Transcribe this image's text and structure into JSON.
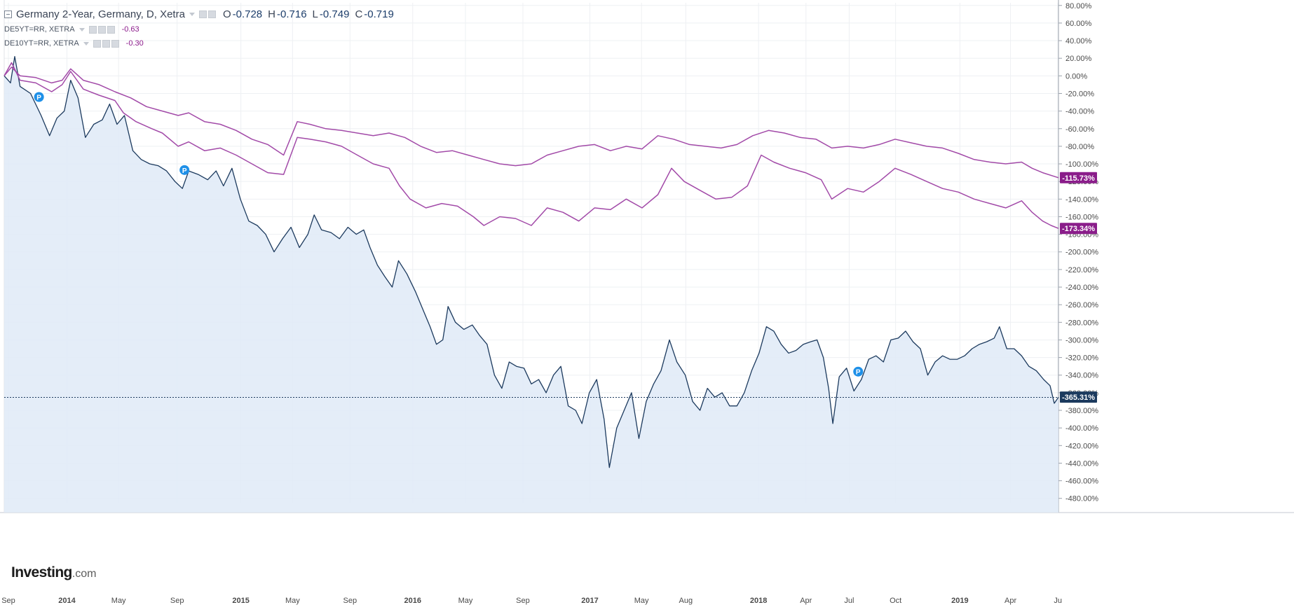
{
  "legend": {
    "main_title": "Germany 2-Year, Germany, D, Xetra",
    "open_label": "O",
    "open_value": "-0.728",
    "high_label": "H",
    "high_value": "-0.716",
    "low_label": "L",
    "low_value": "-0.749",
    "close_label": "C",
    "close_value": "-0.719",
    "series2_title": "DE5YT=RR, XETRA",
    "series2_value": "-0.63",
    "series3_title": "DE10YT=RR, XETRA",
    "series3_value": "-0.30"
  },
  "branding": {
    "logo_word": "Investing",
    "logo_suffix": ".com"
  },
  "colors": {
    "main_line": "#1c3a5e",
    "main_fill": "#dfeaf7",
    "compare_line": "#a24aa8",
    "main_badge": "#1c3a5e",
    "compare_badge": "#8a1d8a",
    "grid": "#eef0f3",
    "axis_text": "#4a4a4a",
    "marker": "#1e90e8"
  },
  "chart_data": {
    "type": "line",
    "title": "Germany 2-Year, Germany, D, Xetra",
    "x_ticks": [
      "Sep",
      "2014",
      "May",
      "Sep",
      "2015",
      "May",
      "Sep",
      "2016",
      "May",
      "Sep",
      "2017",
      "May",
      "Aug",
      "2018",
      "Apr",
      "Jul",
      "Oct",
      "2019",
      "Apr",
      "Ju"
    ],
    "y_ticks": [
      "80.00%",
      "60.00%",
      "40.00%",
      "20.00%",
      "0.00%",
      "-20.00%",
      "-40.00%",
      "-60.00%",
      "-80.00%",
      "-100.00%",
      "-120.00%",
      "-140.00%",
      "-160.00%",
      "-180.00%",
      "-200.00%",
      "-220.00%",
      "-240.00%",
      "-260.00%",
      "-280.00%",
      "-300.00%",
      "-320.00%",
      "-340.00%",
      "-360.00%",
      "-380.00%",
      "-400.00%",
      "-420.00%",
      "-440.00%",
      "-460.00%",
      "-480.00%"
    ],
    "y_unit": "% change",
    "ylim": [
      -485,
      83
    ],
    "grid": true,
    "x_domain": [
      0,
      100
    ],
    "series": [
      {
        "name": "Germany 2-Year, Germany, D, Xetra",
        "role": "main",
        "last_label": "-365.31%",
        "points": [
          [
            0,
            0
          ],
          [
            0.6,
            -8
          ],
          [
            1,
            22
          ],
          [
            1.5,
            -12
          ],
          [
            2.5,
            -20
          ],
          [
            3.5,
            -45
          ],
          [
            4.3,
            -68
          ],
          [
            5,
            -48
          ],
          [
            5.7,
            -40
          ],
          [
            6.3,
            -5
          ],
          [
            7,
            -25
          ],
          [
            7.7,
            -70
          ],
          [
            8.5,
            -55
          ],
          [
            9.3,
            -50
          ],
          [
            10,
            -32
          ],
          [
            10.7,
            -55
          ],
          [
            11.4,
            -45
          ],
          [
            12.2,
            -85
          ],
          [
            13,
            -95
          ],
          [
            13.8,
            -100
          ],
          [
            14.6,
            -102
          ],
          [
            15.4,
            -108
          ],
          [
            16.2,
            -120
          ],
          [
            16.9,
            -128
          ],
          [
            17.5,
            -108
          ],
          [
            18.4,
            -112
          ],
          [
            19.3,
            -118
          ],
          [
            20.1,
            -108
          ],
          [
            20.8,
            -125
          ],
          [
            21.6,
            -105
          ],
          [
            22.4,
            -140
          ],
          [
            23.2,
            -165
          ],
          [
            24,
            -170
          ],
          [
            24.8,
            -180
          ],
          [
            25.6,
            -200
          ],
          [
            26.4,
            -185
          ],
          [
            27.2,
            -172
          ],
          [
            28,
            -195
          ],
          [
            28.8,
            -180
          ],
          [
            29.4,
            -158
          ],
          [
            30.1,
            -175
          ],
          [
            31,
            -178
          ],
          [
            31.8,
            -185
          ],
          [
            32.6,
            -172
          ],
          [
            33.4,
            -180
          ],
          [
            34.1,
            -175
          ],
          [
            34.7,
            -195
          ],
          [
            35.4,
            -215
          ],
          [
            36.1,
            -228
          ],
          [
            36.8,
            -240
          ],
          [
            37.4,
            -210
          ],
          [
            38.2,
            -225
          ],
          [
            39,
            -245
          ],
          [
            39.7,
            -265
          ],
          [
            40.4,
            -285
          ],
          [
            41,
            -305
          ],
          [
            41.6,
            -300
          ],
          [
            42.1,
            -262
          ],
          [
            42.8,
            -280
          ],
          [
            43.6,
            -288
          ],
          [
            44.4,
            -283
          ],
          [
            45.1,
            -295
          ],
          [
            45.8,
            -305
          ],
          [
            46.5,
            -340
          ],
          [
            47.2,
            -355
          ],
          [
            47.9,
            -325
          ],
          [
            48.6,
            -330
          ],
          [
            49.3,
            -332
          ],
          [
            50,
            -350
          ],
          [
            50.7,
            -345
          ],
          [
            51.4,
            -360
          ],
          [
            52.1,
            -340
          ],
          [
            52.8,
            -330
          ],
          [
            53.5,
            -375
          ],
          [
            54.2,
            -380
          ],
          [
            54.8,
            -395
          ],
          [
            55.5,
            -360
          ],
          [
            56.2,
            -345
          ],
          [
            56.9,
            -390
          ],
          [
            57.4,
            -445
          ],
          [
            58.1,
            -400
          ],
          [
            58.8,
            -380
          ],
          [
            59.5,
            -360
          ],
          [
            60.2,
            -412
          ],
          [
            60.9,
            -370
          ],
          [
            61.6,
            -350
          ],
          [
            62.3,
            -335
          ],
          [
            63.1,
            -300
          ],
          [
            63.8,
            -325
          ],
          [
            64.6,
            -340
          ],
          [
            65.3,
            -370
          ],
          [
            66,
            -380
          ],
          [
            66.7,
            -355
          ],
          [
            67.4,
            -365
          ],
          [
            68.1,
            -360
          ],
          [
            68.8,
            -375
          ],
          [
            69.5,
            -375
          ],
          [
            70.2,
            -360
          ],
          [
            70.9,
            -335
          ],
          [
            71.6,
            -315
          ],
          [
            72.3,
            -285
          ],
          [
            73,
            -290
          ],
          [
            73.7,
            -305
          ],
          [
            74.4,
            -315
          ],
          [
            75.1,
            -312
          ],
          [
            75.8,
            -305
          ],
          [
            76.5,
            -302
          ],
          [
            77.1,
            -300
          ],
          [
            77.7,
            -320
          ],
          [
            78.2,
            -355
          ],
          [
            78.6,
            -395
          ],
          [
            79.2,
            -342
          ],
          [
            79.9,
            -332
          ],
          [
            80.6,
            -358
          ],
          [
            81.3,
            -345
          ],
          [
            82,
            -322
          ],
          [
            82.7,
            -318
          ],
          [
            83.4,
            -325
          ],
          [
            84.1,
            -300
          ],
          [
            84.8,
            -298
          ],
          [
            85.5,
            -290
          ],
          [
            86.2,
            -302
          ],
          [
            86.9,
            -310
          ],
          [
            87.6,
            -340
          ],
          [
            88.3,
            -325
          ],
          [
            89,
            -318
          ],
          [
            89.7,
            -322
          ],
          [
            90.4,
            -322
          ],
          [
            91.1,
            -318
          ],
          [
            91.8,
            -310
          ],
          [
            92.5,
            -305
          ],
          [
            93.2,
            -302
          ],
          [
            93.9,
            -298
          ],
          [
            94.4,
            -285
          ],
          [
            95.1,
            -310
          ],
          [
            95.8,
            -310
          ],
          [
            96.5,
            -318
          ],
          [
            97.2,
            -330
          ],
          [
            97.9,
            -335
          ],
          [
            98.6,
            -345
          ],
          [
            99.2,
            -352
          ],
          [
            99.6,
            -372
          ],
          [
            100,
            -365
          ]
        ]
      },
      {
        "name": "DE5YT=RR, XETRA",
        "role": "compare",
        "last_label": "-173.34%",
        "points": [
          [
            0,
            0
          ],
          [
            0.7,
            15
          ],
          [
            1.5,
            -5
          ],
          [
            3,
            -8
          ],
          [
            4.5,
            -18
          ],
          [
            5.5,
            -10
          ],
          [
            6.3,
            5
          ],
          [
            7.5,
            -15
          ],
          [
            9,
            -22
          ],
          [
            10.5,
            -28
          ],
          [
            11.3,
            -42
          ],
          [
            12.5,
            -52
          ],
          [
            14,
            -60
          ],
          [
            15,
            -65
          ],
          [
            16.5,
            -80
          ],
          [
            17.5,
            -75
          ],
          [
            19,
            -85
          ],
          [
            20.5,
            -82
          ],
          [
            22,
            -90
          ],
          [
            23.5,
            -100
          ],
          [
            25,
            -110
          ],
          [
            26.5,
            -112
          ],
          [
            27.8,
            -70
          ],
          [
            29,
            -72
          ],
          [
            30.5,
            -75
          ],
          [
            32,
            -80
          ],
          [
            33.5,
            -90
          ],
          [
            35,
            -100
          ],
          [
            36.5,
            -105
          ],
          [
            37.5,
            -125
          ],
          [
            38.5,
            -140
          ],
          [
            40,
            -150
          ],
          [
            41.5,
            -145
          ],
          [
            43,
            -148
          ],
          [
            44.5,
            -160
          ],
          [
            45.5,
            -170
          ],
          [
            47,
            -160
          ],
          [
            48.5,
            -162
          ],
          [
            50,
            -170
          ],
          [
            51.5,
            -150
          ],
          [
            53,
            -155
          ],
          [
            54.5,
            -165
          ],
          [
            56,
            -150
          ],
          [
            57.5,
            -152
          ],
          [
            59,
            -140
          ],
          [
            60.5,
            -150
          ],
          [
            62,
            -135
          ],
          [
            63.3,
            -105
          ],
          [
            64.5,
            -120
          ],
          [
            66,
            -130
          ],
          [
            67.5,
            -140
          ],
          [
            69,
            -138
          ],
          [
            70.5,
            -125
          ],
          [
            71.8,
            -90
          ],
          [
            73,
            -98
          ],
          [
            74.5,
            -105
          ],
          [
            76,
            -110
          ],
          [
            77.5,
            -118
          ],
          [
            78.5,
            -140
          ],
          [
            80,
            -128
          ],
          [
            81.5,
            -132
          ],
          [
            83,
            -120
          ],
          [
            84.5,
            -105
          ],
          [
            86,
            -112
          ],
          [
            87.5,
            -120
          ],
          [
            89,
            -128
          ],
          [
            90.5,
            -132
          ],
          [
            92,
            -140
          ],
          [
            93.5,
            -145
          ],
          [
            95,
            -150
          ],
          [
            96.5,
            -142
          ],
          [
            97.5,
            -155
          ],
          [
            98.5,
            -165
          ],
          [
            99.3,
            -170
          ],
          [
            100,
            -173.34
          ]
        ]
      },
      {
        "name": "DE10YT=RR, XETRA",
        "role": "compare",
        "last_label": "-115.73%",
        "points": [
          [
            0,
            0
          ],
          [
            0.7,
            10
          ],
          [
            1.5,
            0
          ],
          [
            3,
            -2
          ],
          [
            4.5,
            -8
          ],
          [
            5.5,
            -5
          ],
          [
            6.3,
            8
          ],
          [
            7.5,
            -5
          ],
          [
            9,
            -10
          ],
          [
            10.5,
            -18
          ],
          [
            12,
            -25
          ],
          [
            13.5,
            -35
          ],
          [
            15,
            -40
          ],
          [
            16.5,
            -45
          ],
          [
            17.5,
            -42
          ],
          [
            19,
            -52
          ],
          [
            20.5,
            -55
          ],
          [
            22,
            -62
          ],
          [
            23.5,
            -72
          ],
          [
            25,
            -78
          ],
          [
            26.5,
            -90
          ],
          [
            27.8,
            -52
          ],
          [
            29,
            -55
          ],
          [
            30.5,
            -60
          ],
          [
            32,
            -62
          ],
          [
            33.5,
            -65
          ],
          [
            35,
            -68
          ],
          [
            36.5,
            -65
          ],
          [
            38,
            -70
          ],
          [
            39.5,
            -80
          ],
          [
            41,
            -87
          ],
          [
            42.5,
            -85
          ],
          [
            44,
            -90
          ],
          [
            45.5,
            -95
          ],
          [
            47,
            -100
          ],
          [
            48.5,
            -102
          ],
          [
            50,
            -100
          ],
          [
            51.5,
            -90
          ],
          [
            53,
            -85
          ],
          [
            54.5,
            -80
          ],
          [
            56,
            -78
          ],
          [
            57.5,
            -85
          ],
          [
            59,
            -80
          ],
          [
            60.5,
            -83
          ],
          [
            62,
            -68
          ],
          [
            63.5,
            -72
          ],
          [
            65,
            -78
          ],
          [
            66.5,
            -80
          ],
          [
            68,
            -82
          ],
          [
            69.5,
            -78
          ],
          [
            71,
            -68
          ],
          [
            72.5,
            -62
          ],
          [
            74,
            -65
          ],
          [
            75.5,
            -70
          ],
          [
            77,
            -72
          ],
          [
            78.5,
            -82
          ],
          [
            80,
            -80
          ],
          [
            81.5,
            -82
          ],
          [
            83,
            -78
          ],
          [
            84.5,
            -72
          ],
          [
            86,
            -76
          ],
          [
            87.5,
            -80
          ],
          [
            89,
            -82
          ],
          [
            90.5,
            -88
          ],
          [
            92,
            -95
          ],
          [
            93.5,
            -98
          ],
          [
            95,
            -100
          ],
          [
            96.5,
            -98
          ],
          [
            97.5,
            -105
          ],
          [
            98.5,
            -110
          ],
          [
            100,
            -115.73
          ]
        ]
      }
    ],
    "current_level_value": -365.31,
    "event_markers": [
      {
        "label": "P",
        "x": 3.3,
        "y": -24
      },
      {
        "label": "P",
        "x": 17.1,
        "y": -107
      },
      {
        "label": "P",
        "x": 81.0,
        "y": -336
      }
    ]
  }
}
